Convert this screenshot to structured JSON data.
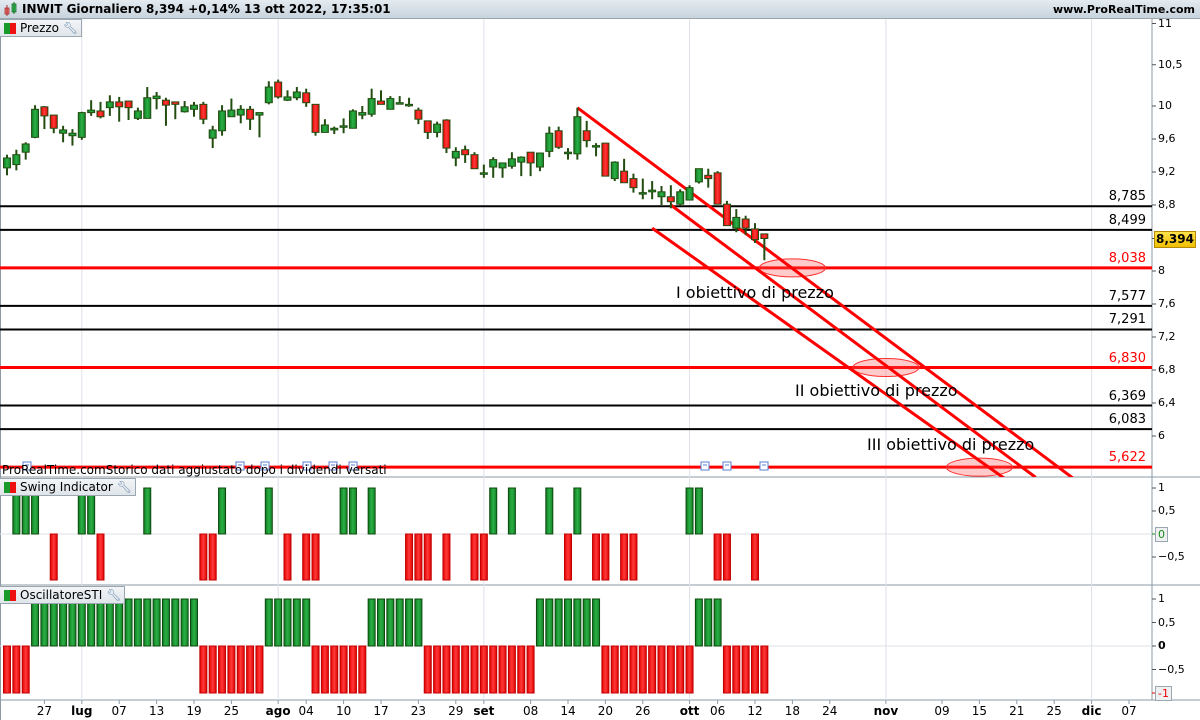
{
  "header": {
    "title": "INWIT Giornaliero 8,394 +0,14% 13 ott 2022, 17:35:01",
    "site": "www.ProRealTime.com"
  },
  "panels": {
    "price_label": "Prezzo",
    "swing_label": "Swing Indicator",
    "osc_label": "OscillatoreSTI",
    "disclaimer": "ProRealTime.comStorico dati aggiustato dopo i dividendi versati"
  },
  "current_price": {
    "label": "8,394",
    "value": 8.394,
    "color": "#f5c400"
  },
  "colors": {
    "up": "#1a9e3a",
    "down": "#ff1a1a",
    "level_black": "#000000",
    "level_red": "#ff0000",
    "trendline": "#ff0000"
  },
  "annotations": [
    {
      "text": "I obiettivo di prezzo"
    },
    {
      "text": "II obiettivo di prezzo"
    },
    {
      "text": "III obiettivo di prezzo"
    }
  ],
  "chart_data": [
    {
      "type": "candlestick",
      "title": "Prezzo",
      "ylim": [
        5.4,
        11.1
      ],
      "y_ticks": [
        {
          "v": 11,
          "label": "11"
        },
        {
          "v": 10.5,
          "label": "10,5"
        },
        {
          "v": 10,
          "label": "10"
        },
        {
          "v": 9.6,
          "label": "9,6"
        },
        {
          "v": 9.2,
          "label": "9,2"
        },
        {
          "v": 8.8,
          "label": "8,8"
        },
        {
          "v": 8,
          "label": "8"
        },
        {
          "v": 7.6,
          "label": "7,6"
        },
        {
          "v": 7.2,
          "label": "7,2"
        },
        {
          "v": 6.8,
          "label": "6,8"
        },
        {
          "v": 6.4,
          "label": "6,4"
        },
        {
          "v": 6,
          "label": "6"
        }
      ],
      "candle_fields": [
        "date",
        "open",
        "high",
        "low",
        "close"
      ],
      "candles": [
        [
          "2022-06-21",
          9.25,
          9.41,
          9.16,
          9.37
        ],
        [
          "2022-06-22",
          9.29,
          9.47,
          9.22,
          9.41
        ],
        [
          "2022-06-23",
          9.44,
          9.56,
          9.35,
          9.54
        ],
        [
          "2022-06-24",
          9.62,
          10.01,
          9.61,
          9.96
        ],
        [
          "2022-06-27",
          9.99,
          10.0,
          9.72,
          9.88
        ],
        [
          "2022-06-28",
          9.89,
          9.89,
          9.67,
          9.73
        ],
        [
          "2022-06-29",
          9.67,
          9.76,
          9.56,
          9.71
        ],
        [
          "2022-06-30",
          9.64,
          9.72,
          9.52,
          9.67
        ],
        [
          "2022-07-01",
          9.62,
          9.93,
          9.59,
          9.92
        ],
        [
          "2022-07-04",
          9.92,
          10.07,
          9.88,
          9.95
        ],
        [
          "2022-07-05",
          9.94,
          10.05,
          9.85,
          9.87
        ],
        [
          "2022-07-06",
          9.98,
          10.13,
          9.88,
          10.05
        ],
        [
          "2022-07-07",
          10.05,
          10.11,
          9.81,
          9.99
        ],
        [
          "2022-07-08",
          10.06,
          10.06,
          9.83,
          9.98
        ],
        [
          "2022-07-11",
          9.85,
          9.98,
          9.83,
          9.94
        ],
        [
          "2022-07-12",
          9.85,
          10.23,
          9.85,
          10.1
        ],
        [
          "2022-07-13",
          10.09,
          10.17,
          9.96,
          10.12
        ],
        [
          "2022-07-14",
          10.07,
          10.1,
          9.76,
          10.01
        ],
        [
          "2022-07-15",
          10.05,
          10.05,
          9.84,
          10.02
        ],
        [
          "2022-07-18",
          9.93,
          10.06,
          9.92,
          9.99
        ],
        [
          "2022-07-19",
          9.96,
          10.05,
          9.87,
          10.01
        ],
        [
          "2022-07-20",
          10.02,
          10.05,
          9.78,
          9.84
        ],
        [
          "2022-07-21",
          9.61,
          9.76,
          9.49,
          9.71
        ],
        [
          "2022-07-22",
          9.7,
          10.01,
          9.64,
          9.94
        ],
        [
          "2022-07-25",
          9.87,
          10.09,
          9.87,
          9.95
        ],
        [
          "2022-07-26",
          9.89,
          10.01,
          9.79,
          9.96
        ],
        [
          "2022-07-27",
          9.96,
          10.0,
          9.71,
          9.84
        ],
        [
          "2022-07-28",
          9.89,
          9.92,
          9.62,
          9.92
        ],
        [
          "2022-07-29",
          10.04,
          10.3,
          10.02,
          10.23
        ],
        [
          "2022-08-01",
          10.29,
          10.32,
          10.09,
          10.11
        ],
        [
          "2022-08-02",
          10.07,
          10.19,
          10.06,
          10.11
        ],
        [
          "2022-08-03",
          10.1,
          10.23,
          10.07,
          10.17
        ],
        [
          "2022-08-04",
          10.16,
          10.21,
          9.99,
          10.04
        ],
        [
          "2022-08-05",
          10.02,
          10.02,
          9.64,
          9.68
        ],
        [
          "2022-08-08",
          9.68,
          9.84,
          9.68,
          9.77
        ],
        [
          "2022-08-09",
          9.71,
          9.75,
          9.66,
          9.73
        ],
        [
          "2022-08-10",
          9.75,
          9.85,
          9.67,
          9.76
        ],
        [
          "2022-08-11",
          9.73,
          9.96,
          9.73,
          9.94
        ],
        [
          "2022-08-12",
          9.89,
          10.0,
          9.84,
          9.92
        ],
        [
          "2022-08-16",
          9.9,
          10.21,
          9.87,
          10.09
        ],
        [
          "2022-08-17",
          10.06,
          10.19,
          10.02,
          10.02
        ],
        [
          "2022-08-18",
          9.96,
          10.12,
          9.96,
          10.09
        ],
        [
          "2022-08-19",
          10.04,
          10.12,
          10.02,
          10.04
        ],
        [
          "2022-08-22",
          10.01,
          10.1,
          9.99,
          10.02
        ],
        [
          "2022-08-23",
          9.95,
          9.98,
          9.78,
          9.84
        ],
        [
          "2022-08-24",
          9.82,
          9.82,
          9.6,
          9.68
        ],
        [
          "2022-08-25",
          9.68,
          9.81,
          9.62,
          9.78
        ],
        [
          "2022-08-26",
          9.83,
          9.84,
          9.43,
          9.49
        ],
        [
          "2022-08-29",
          9.37,
          9.5,
          9.27,
          9.45
        ],
        [
          "2022-08-30",
          9.47,
          9.52,
          9.31,
          9.41
        ],
        [
          "2022-08-31",
          9.41,
          9.44,
          9.24,
          9.24
        ],
        [
          "2022-09-01",
          9.18,
          9.29,
          9.13,
          9.19
        ],
        [
          "2022-09-02",
          9.26,
          9.38,
          9.13,
          9.35
        ],
        [
          "2022-09-05",
          9.25,
          9.31,
          9.13,
          9.31
        ],
        [
          "2022-09-06",
          9.27,
          9.44,
          9.24,
          9.36
        ],
        [
          "2022-09-07",
          9.32,
          9.39,
          9.15,
          9.38
        ],
        [
          "2022-09-08",
          9.44,
          9.44,
          9.15,
          9.31
        ],
        [
          "2022-09-09",
          9.26,
          9.43,
          9.21,
          9.43
        ],
        [
          "2022-09-12",
          9.45,
          9.75,
          9.38,
          9.67
        ],
        [
          "2022-09-13",
          9.7,
          9.75,
          9.48,
          9.5
        ],
        [
          "2022-09-14",
          9.44,
          9.49,
          9.35,
          9.44
        ],
        [
          "2022-09-15",
          9.42,
          9.98,
          9.35,
          9.87
        ],
        [
          "2022-09-16",
          9.7,
          9.82,
          9.5,
          9.58
        ],
        [
          "2022-09-19",
          9.52,
          9.55,
          9.39,
          9.52
        ],
        [
          "2022-09-20",
          9.55,
          9.55,
          9.15,
          9.15
        ],
        [
          "2022-09-21",
          9.12,
          9.33,
          9.09,
          9.32
        ],
        [
          "2022-09-22",
          9.21,
          9.36,
          9.07,
          9.07
        ],
        [
          "2022-09-23",
          9.12,
          9.18,
          8.95,
          9.01
        ],
        [
          "2022-09-26",
          8.95,
          9.12,
          8.87,
          8.95
        ],
        [
          "2022-09-27",
          8.96,
          9.09,
          8.87,
          8.98
        ],
        [
          "2022-09-28",
          8.9,
          9.03,
          8.8,
          8.96
        ],
        [
          "2022-09-29",
          8.9,
          9.04,
          8.76,
          8.84
        ],
        [
          "2022-09-30",
          8.81,
          8.99,
          8.79,
          8.96
        ],
        [
          "2022-10-03",
          8.86,
          9.04,
          8.86,
          9.01
        ],
        [
          "2022-10-04",
          9.08,
          9.24,
          9.06,
          9.24
        ],
        [
          "2022-10-05",
          9.16,
          9.24,
          9.01,
          9.12
        ],
        [
          "2022-10-06",
          9.19,
          9.21,
          8.81,
          8.81
        ],
        [
          "2022-10-07",
          8.81,
          8.85,
          8.55,
          8.55
        ],
        [
          "2022-10-10",
          8.52,
          8.75,
          8.47,
          8.65
        ],
        [
          "2022-10-11",
          8.63,
          8.67,
          8.44,
          8.52
        ],
        [
          "2022-10-12",
          8.51,
          8.58,
          8.34,
          8.38
        ],
        [
          "2022-10-13",
          8.45,
          8.45,
          8.13,
          8.394
        ]
      ],
      "levels": [
        {
          "value": 8.785,
          "label": "8,785",
          "color": "black"
        },
        {
          "value": 8.499,
          "label": "8,499",
          "color": "black"
        },
        {
          "value": 8.038,
          "label": "8,038",
          "color": "red"
        },
        {
          "value": 7.577,
          "label": "7,577",
          "color": "black"
        },
        {
          "value": 7.291,
          "label": "7,291",
          "color": "black"
        },
        {
          "value": 6.83,
          "label": "6,830",
          "color": "red"
        },
        {
          "value": 6.369,
          "label": "6,369",
          "color": "black"
        },
        {
          "value": 6.083,
          "label": "6,083",
          "color": "black"
        },
        {
          "value": 5.622,
          "label": "5,622",
          "color": "red"
        }
      ],
      "trendlines": [
        {
          "from": [
            "2022-09-15",
            9.98
          ],
          "to": [
            "2022-11-29",
            5.49
          ]
        },
        {
          "from": [
            "2022-09-29",
            8.8
          ],
          "to": [
            "2022-11-23",
            5.5
          ]
        },
        {
          "from": [
            "2022-09-27",
            8.52
          ],
          "to": [
            "2022-11-21",
            5.38
          ]
        }
      ],
      "target_zones": [
        {
          "date": "2022-10-18",
          "price": 8.038
        },
        {
          "date": "2022-11-01",
          "price": 6.83
        },
        {
          "date": "2022-11-15",
          "price": 5.622
        }
      ]
    },
    {
      "type": "bar",
      "title": "Swing Indicator",
      "ylim": [
        -1,
        1
      ],
      "y_ticks": [
        {
          "v": 1,
          "label": "1"
        },
        {
          "v": 0.5,
          "label": "0,5"
        },
        {
          "v": 0,
          "label": "0"
        },
        {
          "v": -0.5,
          "label": "−0,5"
        }
      ],
      "values": [
        0,
        1,
        1,
        1,
        0,
        -1,
        0,
        0,
        1,
        1,
        -1,
        0,
        0,
        0,
        0,
        1,
        0,
        0,
        0,
        0,
        0,
        -1,
        -1,
        1,
        0,
        0,
        0,
        0,
        1,
        0,
        -1,
        0,
        -1,
        -1,
        0,
        0,
        1,
        1,
        0,
        1,
        0,
        0,
        0,
        -1,
        -1,
        -1,
        0,
        -1,
        0,
        0,
        -1,
        -1,
        1,
        0,
        1,
        0,
        0,
        0,
        1,
        0,
        -1,
        1,
        0,
        -1,
        -1,
        0,
        -1,
        -1,
        0,
        0,
        0,
        0,
        0,
        1,
        1,
        0,
        -1,
        -1,
        0,
        0,
        -1,
        0
      ]
    },
    {
      "type": "bar",
      "title": "OscillatoreSTI",
      "ylim": [
        -1,
        1
      ],
      "y_ticks": [
        {
          "v": 1,
          "label": "1"
        },
        {
          "v": 0.5,
          "label": "0,5"
        },
        {
          "v": 0,
          "label": "0"
        },
        {
          "v": -0.5,
          "label": "−0,5"
        },
        {
          "v": -1,
          "label": "-1"
        }
      ],
      "values": [
        -1,
        -1,
        -1,
        1,
        1,
        1,
        1,
        1,
        1,
        1,
        1,
        1,
        1,
        1,
        1,
        1,
        1,
        1,
        1,
        1,
        1,
        -1,
        -1,
        -1,
        -1,
        -1,
        -1,
        -1,
        1,
        1,
        1,
        1,
        1,
        -1,
        -1,
        -1,
        -1,
        -1,
        -1,
        1,
        1,
        1,
        1,
        1,
        1,
        -1,
        -1,
        -1,
        -1,
        -1,
        -1,
        -1,
        -1,
        -1,
        -1,
        -1,
        -1,
        1,
        1,
        1,
        1,
        1,
        1,
        1,
        -1,
        -1,
        -1,
        -1,
        -1,
        -1,
        -1,
        -1,
        -1,
        -1,
        1,
        1,
        1,
        -1,
        -1,
        -1,
        -1,
        -1
      ]
    }
  ],
  "x_axis": {
    "ticks": [
      {
        "date": "2022-06-27",
        "label": "27",
        "month": false
      },
      {
        "date": "2022-07-01",
        "label": "lug",
        "month": true
      },
      {
        "date": "2022-07-07",
        "label": "07",
        "month": false
      },
      {
        "date": "2022-07-13",
        "label": "13",
        "month": false
      },
      {
        "date": "2022-07-19",
        "label": "19",
        "month": false
      },
      {
        "date": "2022-07-25",
        "label": "25",
        "month": false
      },
      {
        "date": "2022-08-01",
        "label": "ago",
        "month": true
      },
      {
        "date": "2022-08-04",
        "label": "04",
        "month": false
      },
      {
        "date": "2022-08-10",
        "label": "10",
        "month": false
      },
      {
        "date": "2022-08-17",
        "label": "17",
        "month": false
      },
      {
        "date": "2022-08-23",
        "label": "23",
        "month": false
      },
      {
        "date": "2022-08-29",
        "label": "29",
        "month": false
      },
      {
        "date": "2022-09-01",
        "label": "set",
        "month": true
      },
      {
        "date": "2022-09-08",
        "label": "08",
        "month": false
      },
      {
        "date": "2022-09-14",
        "label": "14",
        "month": false
      },
      {
        "date": "2022-09-20",
        "label": "20",
        "month": false
      },
      {
        "date": "2022-09-26",
        "label": "26",
        "month": false
      },
      {
        "date": "2022-10-03",
        "label": "ott",
        "month": true
      },
      {
        "date": "2022-10-06",
        "label": "06",
        "month": false
      },
      {
        "date": "2022-10-12",
        "label": "12",
        "month": false
      },
      {
        "date": "2022-10-18",
        "label": "18",
        "month": false
      },
      {
        "date": "2022-10-24",
        "label": "24",
        "month": false
      },
      {
        "date": "2022-11-01",
        "label": "nov",
        "month": true
      },
      {
        "date": "2022-11-09",
        "label": "09",
        "month": false
      },
      {
        "date": "2022-11-15",
        "label": "15",
        "month": false
      },
      {
        "date": "2022-11-21",
        "label": "21",
        "month": false
      },
      {
        "date": "2022-11-25",
        "label": "25",
        "month": false
      },
      {
        "date": "2022-12-01",
        "label": "dic",
        "month": true
      },
      {
        "date": "2022-12-07",
        "label": "07",
        "month": false
      }
    ]
  }
}
